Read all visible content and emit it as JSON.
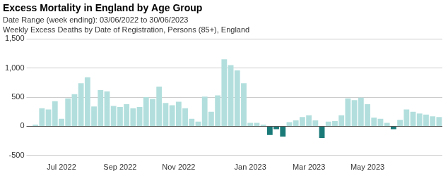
{
  "chart_data": {
    "type": "bar",
    "title": "Excess Mortality in England by Age Group",
    "subtitle": [
      "Date Range (week ending): 03/06/2022 to 30/06/2023",
      "Weekly Excess Deaths by Date of Registration, Persons (85+), England"
    ],
    "categories": [
      null,
      null,
      null,
      null,
      "Jul 2022",
      null,
      null,
      null,
      null,
      null,
      null,
      null,
      null,
      "Sep 2022",
      null,
      null,
      null,
      null,
      null,
      null,
      null,
      null,
      "Nov 2022",
      null,
      null,
      null,
      null,
      null,
      null,
      null,
      null,
      null,
      null,
      "Jan 2023",
      null,
      null,
      null,
      null,
      null,
      null,
      null,
      null,
      "Mar 2023",
      null,
      null,
      null,
      null,
      null,
      null,
      null,
      null,
      "May 2023",
      null,
      null,
      null,
      null,
      null,
      null,
      null,
      null,
      null,
      null,
      null
    ],
    "values": [
      30,
      310,
      290,
      430,
      130,
      480,
      550,
      740,
      840,
      340,
      620,
      600,
      350,
      330,
      380,
      310,
      330,
      500,
      470,
      680,
      400,
      360,
      420,
      310,
      130,
      80,
      510,
      250,
      530,
      1150,
      1050,
      960,
      740,
      60,
      60,
      30,
      -150,
      -50,
      -175,
      70,
      100,
      160,
      190,
      100,
      -200,
      80,
      90,
      190,
      480,
      450,
      490,
      380,
      150,
      130,
      60,
      -50,
      110,
      290,
      250,
      220,
      200,
      170,
      160
    ],
    "colors": [
      "#b2dfdd",
      "#b2dfdd",
      "#b2dfdd",
      "#b2dfdd",
      "#b2dfdd",
      "#b2dfdd",
      "#b2dfdd",
      "#b2dfdd",
      "#b2dfdd",
      "#b2dfdd",
      "#b2dfdd",
      "#b2dfdd",
      "#b2dfdd",
      "#b2dfdd",
      "#b2dfdd",
      "#b2dfdd",
      "#b2dfdd",
      "#b2dfdd",
      "#b2dfdd",
      "#b2dfdd",
      "#b2dfdd",
      "#b2dfdd",
      "#b2dfdd",
      "#b2dfdd",
      "#b2dfdd",
      "#b2dfdd",
      "#b2dfdd",
      "#b2dfdd",
      "#b2dfdd",
      "#b2dfdd",
      "#b2dfdd",
      "#b2dfdd",
      "#b2dfdd",
      "#b2dfdd",
      "#b2dfdd",
      "#b2dfdd",
      "#1a7a78",
      "#1a7a78",
      "#1a7a78",
      "#b2dfdd",
      "#b2dfdd",
      "#b2dfdd",
      "#b2dfdd",
      "#b2dfdd",
      "#1a7a78",
      "#b2dfdd",
      "#b2dfdd",
      "#b2dfdd",
      "#b2dfdd",
      "#b2dfdd",
      "#b2dfdd",
      "#b2dfdd",
      "#b2dfdd",
      "#b2dfdd",
      "#b2dfdd",
      "#1a7a78",
      "#b2dfdd",
      "#b2dfdd",
      "#b2dfdd",
      "#b2dfdd",
      "#b2dfdd",
      "#b2dfdd",
      "#b2dfdd"
    ],
    "ylim": [
      -500,
      1500
    ],
    "yticks": [
      -500,
      0,
      500,
      {
        "value": 1000,
        "label": "1,000"
      },
      {
        "value": 1500,
        "label": "1,500"
      }
    ],
    "grid": true
  }
}
